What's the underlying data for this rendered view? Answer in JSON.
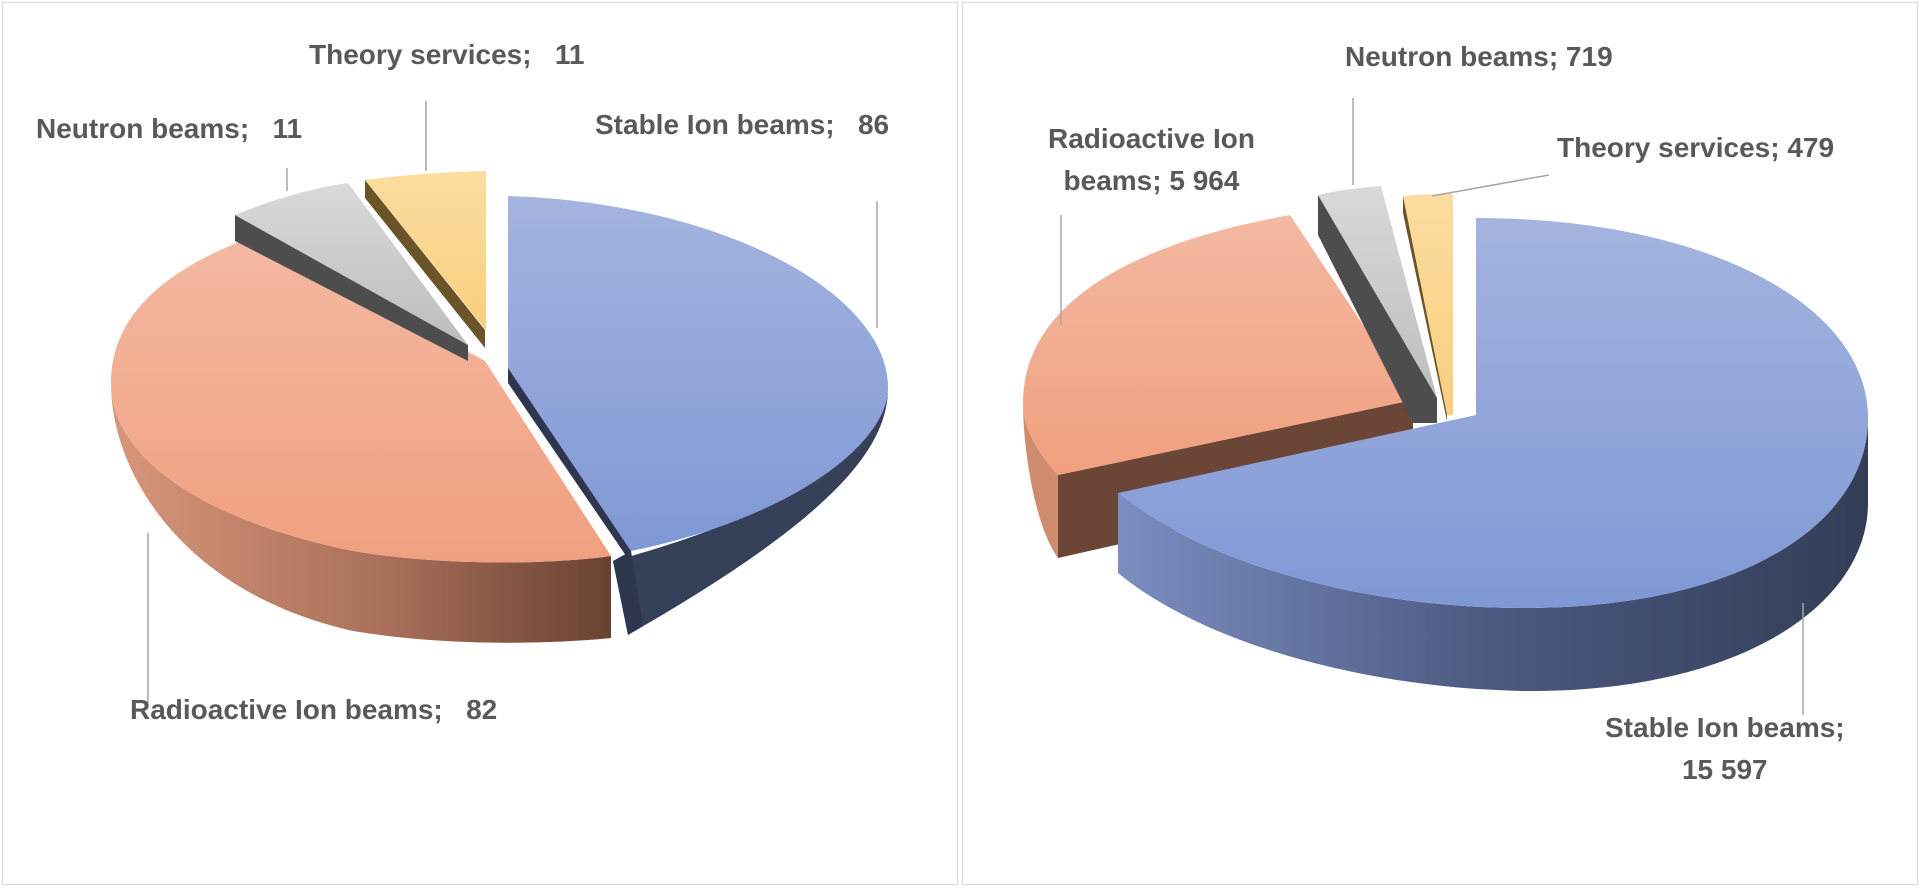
{
  "chart_data": [
    {
      "type": "pie",
      "style": "3d-exploded",
      "slices": [
        {
          "label": "Stable Ion beams",
          "value": 86,
          "label_text": "Stable Ion beams;   86",
          "color": "#8EA3D8",
          "side_color": "#364058"
        },
        {
          "label": "Radioactive Ion beams",
          "value": 82,
          "label_text": "Radioactive Ion beams;   82",
          "color": "#F2AC8C",
          "side_color": "#C98163"
        },
        {
          "label": "Neutron beams",
          "value": 11,
          "label_text": "Neutron beams;   11",
          "color": "#CFCFCF",
          "side_color": "#4D4D4D"
        },
        {
          "label": "Theory services",
          "value": 11,
          "label_text": "Theory services;   11",
          "color": "#FAD58C",
          "side_color": "#6B5528"
        }
      ]
    },
    {
      "type": "pie",
      "style": "3d-exploded",
      "slices": [
        {
          "label": "Stable Ion beams",
          "value": 15597,
          "label_text": "Stable Ion beams;\n15 597",
          "color": "#8EA3D8",
          "side_color": "#364058"
        },
        {
          "label": "Radioactive Ion beams",
          "value": 5964,
          "label_text": "Radioactive Ion\nbeams; 5 964",
          "color": "#F2AC8C",
          "side_color": "#6B4535"
        },
        {
          "label": "Neutron beams",
          "value": 719,
          "label_text": "Neutron beams; 719",
          "color": "#CFCFCF",
          "side_color": "#4D4D4D"
        },
        {
          "label": "Theory services",
          "value": 479,
          "label_text": "Theory services; 479",
          "color": "#FAD58C",
          "side_color": "#6B5528"
        }
      ]
    }
  ]
}
